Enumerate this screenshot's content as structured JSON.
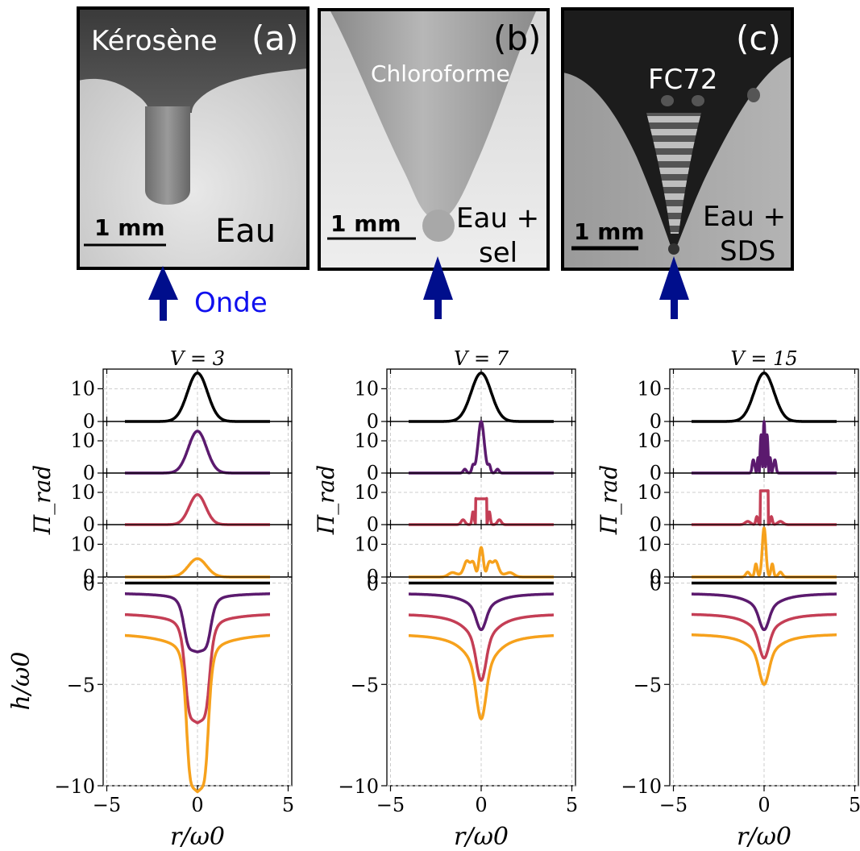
{
  "photos": [
    {
      "letter": "(a)",
      "upper_fluid": "Kérosène",
      "lower_fluid_lines": [
        "Eau"
      ],
      "scale_bar": "1 mm",
      "wave_label": "Onde"
    },
    {
      "letter": "(b)",
      "upper_fluid": "Chloroforme",
      "lower_fluid_lines": [
        "Eau +",
        "sel"
      ],
      "scale_bar": "1 mm",
      "wave_label": ""
    },
    {
      "letter": "(c)",
      "upper_fluid": "FC72",
      "lower_fluid_lines": [
        "Eau +",
        "SDS"
      ],
      "scale_bar": "1 mm",
      "wave_label": ""
    }
  ],
  "colors": {
    "curve_1": "#000000",
    "curve_2": "#5b1a6e",
    "curve_3": "#c43e55",
    "curve_4": "#f6a11c",
    "arrow": "#000e8c",
    "wave_text": "#1010ee"
  },
  "chart_data": [
    {
      "type": "line",
      "title": "V = 3",
      "V": 3,
      "xlabel": "r/ω0",
      "ylabel_top": "Π_rad",
      "ylabel_bottom": "h/ω0",
      "xlim": [
        -5.2,
        5.2
      ],
      "xticks": [
        "−5",
        "0",
        "5"
      ],
      "top_panels_ylim": [
        0,
        16
      ],
      "top_panels_yticks": [
        "0",
        "10"
      ],
      "bottom_ylim": [
        -10,
        0.3
      ],
      "bottom_yticks": [
        "−10",
        "−5",
        "0"
      ],
      "radiation_pressure_peaks": [
        14.8,
        13.0,
        9.3,
        5.6
      ],
      "interface_min_depth": [
        0,
        -3.0,
        -6.1,
        -9.1
      ],
      "interface_far_field": [
        0,
        -0.5,
        -1.5,
        -2.5
      ],
      "grid": true
    },
    {
      "type": "line",
      "title": "V = 7",
      "V": 7,
      "xlabel": "r/ω0",
      "ylabel_top": "Π_rad",
      "ylabel_bottom": "",
      "xlim": [
        -5.2,
        5.2
      ],
      "xticks": [
        "−5",
        "0",
        "5"
      ],
      "top_panels_ylim": [
        0,
        16
      ],
      "top_panels_yticks": [
        "0",
        "10"
      ],
      "bottom_ylim": [
        -10,
        0.3
      ],
      "bottom_yticks": [
        "−10",
        "−5",
        "0"
      ],
      "radiation_pressure_peaks": [
        14.8,
        16.0,
        8.0,
        9.0
      ],
      "interface_min_depth": [
        0,
        -2.3,
        -4.8,
        -6.7
      ],
      "interface_far_field": [
        0,
        -0.5,
        -1.5,
        -2.5
      ],
      "grid": true
    },
    {
      "type": "line",
      "title": "V = 15",
      "V": 15,
      "xlabel": "r/ω0",
      "ylabel_top": "Π_rad",
      "ylabel_bottom": "",
      "xlim": [
        -5.2,
        5.2
      ],
      "xticks": [
        "−5",
        "0",
        "5"
      ],
      "top_panels_ylim": [
        0,
        16
      ],
      "top_panels_yticks": [
        "0",
        "10"
      ],
      "bottom_ylim": [
        -10,
        0.3
      ],
      "bottom_yticks": [
        "−10",
        "−5",
        "0"
      ],
      "radiation_pressure_peaks": [
        14.8,
        16.0,
        10.5,
        15.0
      ],
      "interface_min_depth": [
        0,
        -2.3,
        -3.7,
        -5.0
      ],
      "interface_far_field": [
        0,
        -0.5,
        -1.5,
        -2.5
      ],
      "grid": true
    }
  ]
}
